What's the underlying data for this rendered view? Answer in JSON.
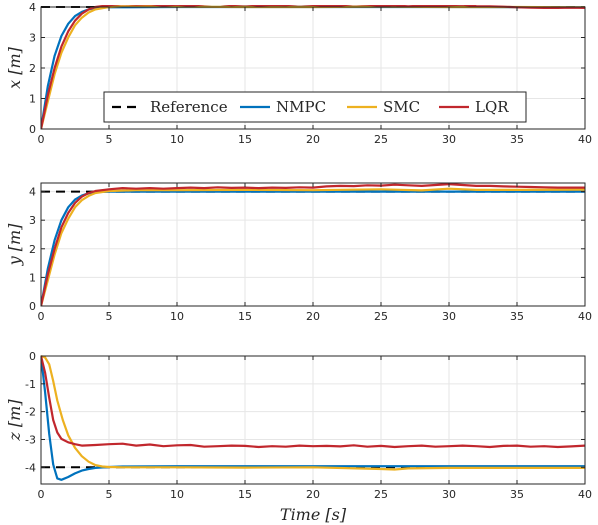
{
  "chart_data": [
    {
      "type": "line",
      "ylabel": "x [m]",
      "xlim": [
        0,
        40
      ],
      "ylim": [
        0,
        4
      ],
      "xticks": [
        "0",
        "5",
        "10",
        "15",
        "20",
        "25",
        "30",
        "35",
        "40"
      ],
      "yticks": [
        "0",
        "1",
        "2",
        "3",
        "4"
      ],
      "grid": true,
      "legend": "center-left",
      "series": [
        {
          "name": "Reference",
          "color": "#000000",
          "dash": true,
          "points": [
            [
              0,
              4
            ],
            [
              40,
              4
            ]
          ]
        },
        {
          "name": "NMPC",
          "color": "#0072BD",
          "points": [
            [
              0,
              0
            ],
            [
              0.5,
              1.4
            ],
            [
              1,
              2.4
            ],
            [
              1.5,
              3.05
            ],
            [
              2,
              3.45
            ],
            [
              2.5,
              3.7
            ],
            [
              3,
              3.84
            ],
            [
              3.5,
              3.92
            ],
            [
              4,
              3.97
            ],
            [
              5,
              3.99
            ],
            [
              10,
              4.0
            ],
            [
              20,
              4.0
            ],
            [
              30,
              4.0
            ],
            [
              40,
              3.99
            ]
          ]
        },
        {
          "name": "SMC",
          "color": "#EDB120",
          "points": [
            [
              0,
              0
            ],
            [
              0.5,
              0.9
            ],
            [
              1,
              1.8
            ],
            [
              1.5,
              2.5
            ],
            [
              2,
              3.0
            ],
            [
              2.5,
              3.4
            ],
            [
              3,
              3.65
            ],
            [
              3.5,
              3.82
            ],
            [
              4,
              3.92
            ],
            [
              5,
              4.0
            ],
            [
              6,
              4.02
            ],
            [
              10,
              4.01
            ],
            [
              15,
              4.0
            ],
            [
              20,
              4.0
            ],
            [
              25,
              4.01
            ],
            [
              30,
              4.0
            ],
            [
              35,
              4.0
            ],
            [
              40,
              3.99
            ]
          ]
        },
        {
          "name": "LQR",
          "color": "#C1272D",
          "points": [
            [
              0,
              0
            ],
            [
              0.5,
              1.1
            ],
            [
              1,
              2.0
            ],
            [
              1.5,
              2.7
            ],
            [
              2,
              3.2
            ],
            [
              2.5,
              3.55
            ],
            [
              3,
              3.78
            ],
            [
              3.5,
              3.92
            ],
            [
              4,
              4.0
            ],
            [
              5,
              4.06
            ],
            [
              6,
              4.1
            ],
            [
              7,
              4.08
            ],
            [
              8,
              4.09
            ],
            [
              9,
              4.05
            ],
            [
              10,
              4.08
            ],
            [
              11,
              4.04
            ],
            [
              12,
              4.09
            ],
            [
              13,
              4.11
            ],
            [
              14,
              4.06
            ],
            [
              15,
              4.09
            ],
            [
              16,
              4.05
            ],
            [
              17,
              4.07
            ],
            [
              18,
              4.06
            ],
            [
              19,
              4.1
            ],
            [
              20,
              4.07
            ],
            [
              21,
              4.04
            ],
            [
              22,
              4.05
            ],
            [
              23,
              4.1
            ],
            [
              24,
              4.08
            ],
            [
              25,
              4.04
            ],
            [
              26,
              4.06
            ],
            [
              27,
              4.02
            ],
            [
              28,
              4.05
            ],
            [
              29,
              4.03
            ],
            [
              30,
              4.06
            ],
            [
              31,
              4.08
            ],
            [
              32,
              4.03
            ],
            [
              33,
              4.02
            ],
            [
              34,
              4.01
            ],
            [
              35,
              3.99
            ],
            [
              36,
              3.98
            ],
            [
              37,
              3.97
            ],
            [
              38,
              3.97
            ],
            [
              39,
              3.98
            ],
            [
              40,
              3.97
            ]
          ]
        }
      ]
    },
    {
      "type": "line",
      "ylabel": "y [m]",
      "xlim": [
        0,
        40
      ],
      "ylim": [
        0,
        4.3
      ],
      "xticks": [
        "0",
        "5",
        "10",
        "15",
        "20",
        "25",
        "30",
        "35",
        "40"
      ],
      "yticks": [
        "0",
        "1",
        "2",
        "3",
        "4"
      ],
      "grid": true,
      "series": [
        {
          "name": "Reference",
          "color": "#000000",
          "dash": true,
          "points": [
            [
              0,
              4
            ],
            [
              40,
              4
            ]
          ]
        },
        {
          "name": "NMPC",
          "color": "#0072BD",
          "points": [
            [
              0,
              0
            ],
            [
              0.5,
              1.3
            ],
            [
              1,
              2.3
            ],
            [
              1.5,
              3.0
            ],
            [
              2,
              3.45
            ],
            [
              2.5,
              3.72
            ],
            [
              3,
              3.86
            ],
            [
              3.5,
              3.94
            ],
            [
              4,
              3.98
            ],
            [
              5,
              4.0
            ],
            [
              10,
              4.0
            ],
            [
              20,
              4.0
            ],
            [
              30,
              4.0
            ],
            [
              40,
              4.0
            ]
          ]
        },
        {
          "name": "SMC",
          "color": "#EDB120",
          "points": [
            [
              0,
              0
            ],
            [
              0.5,
              0.9
            ],
            [
              1,
              1.8
            ],
            [
              1.5,
              2.55
            ],
            [
              2,
              3.05
            ],
            [
              2.5,
              3.45
            ],
            [
              3,
              3.7
            ],
            [
              3.5,
              3.85
            ],
            [
              4,
              3.95
            ],
            [
              5,
              4.02
            ],
            [
              7,
              4.05
            ],
            [
              10,
              4.05
            ],
            [
              15,
              4.06
            ],
            [
              20,
              4.05
            ],
            [
              25,
              4.08
            ],
            [
              28,
              4.04
            ],
            [
              30,
              4.1
            ],
            [
              32,
              4.06
            ],
            [
              35,
              4.06
            ],
            [
              40,
              4.07
            ]
          ]
        },
        {
          "name": "LQR",
          "color": "#C1272D",
          "points": [
            [
              0,
              0
            ],
            [
              0.5,
              1.1
            ],
            [
              1,
              2.0
            ],
            [
              1.5,
              2.75
            ],
            [
              2,
              3.25
            ],
            [
              2.5,
              3.6
            ],
            [
              3,
              3.82
            ],
            [
              3.5,
              3.95
            ],
            [
              4,
              4.02
            ],
            [
              5,
              4.08
            ],
            [
              6,
              4.12
            ],
            [
              7,
              4.1
            ],
            [
              8,
              4.12
            ],
            [
              9,
              4.1
            ],
            [
              10,
              4.12
            ],
            [
              11,
              4.14
            ],
            [
              12,
              4.12
            ],
            [
              13,
              4.15
            ],
            [
              14,
              4.13
            ],
            [
              15,
              4.14
            ],
            [
              16,
              4.12
            ],
            [
              17,
              4.14
            ],
            [
              18,
              4.13
            ],
            [
              19,
              4.15
            ],
            [
              20,
              4.14
            ],
            [
              21,
              4.18
            ],
            [
              22,
              4.2
            ],
            [
              23,
              4.19
            ],
            [
              24,
              4.22
            ],
            [
              25,
              4.21
            ],
            [
              26,
              4.24
            ],
            [
              27,
              4.22
            ],
            [
              28,
              4.2
            ],
            [
              29,
              4.23
            ],
            [
              30,
              4.26
            ],
            [
              31,
              4.23
            ],
            [
              32,
              4.2
            ],
            [
              33,
              4.2
            ],
            [
              34,
              4.18
            ],
            [
              35,
              4.17
            ],
            [
              36,
              4.16
            ],
            [
              37,
              4.15
            ],
            [
              38,
              4.14
            ],
            [
              39,
              4.14
            ],
            [
              40,
              4.14
            ]
          ]
        }
      ]
    },
    {
      "type": "line",
      "ylabel": "z [m]",
      "xlabel": "Time [s]",
      "xlim": [
        0,
        40
      ],
      "ylim": [
        -4.6,
        0
      ],
      "xticks": [
        "0",
        "5",
        "10",
        "15",
        "20",
        "25",
        "30",
        "35",
        "40"
      ],
      "yticks": [
        "0",
        "-1",
        "-2",
        "-3",
        "-4"
      ],
      "grid": true,
      "series": [
        {
          "name": "Reference",
          "color": "#000000",
          "dash": true,
          "points": [
            [
              0,
              -4
            ],
            [
              40,
              -4
            ]
          ]
        },
        {
          "name": "NMPC",
          "color": "#0072BD",
          "points": [
            [
              0,
              0
            ],
            [
              0.3,
              -1.3
            ],
            [
              0.6,
              -2.8
            ],
            [
              0.9,
              -3.9
            ],
            [
              1.2,
              -4.4
            ],
            [
              1.5,
              -4.45
            ],
            [
              2,
              -4.35
            ],
            [
              2.5,
              -4.22
            ],
            [
              3,
              -4.12
            ],
            [
              3.5,
              -4.06
            ],
            [
              4,
              -4.02
            ],
            [
              5,
              -3.99
            ],
            [
              6,
              -3.97
            ],
            [
              10,
              -3.96
            ],
            [
              20,
              -3.96
            ],
            [
              30,
              -3.96
            ],
            [
              40,
              -3.96
            ]
          ]
        },
        {
          "name": "SMC",
          "color": "#EDB120",
          "points": [
            [
              0,
              0
            ],
            [
              0.3,
              -0.05
            ],
            [
              0.6,
              -0.3
            ],
            [
              0.9,
              -0.9
            ],
            [
              1.2,
              -1.6
            ],
            [
              1.6,
              -2.3
            ],
            [
              2,
              -2.85
            ],
            [
              2.5,
              -3.3
            ],
            [
              3,
              -3.6
            ],
            [
              3.5,
              -3.8
            ],
            [
              4,
              -3.92
            ],
            [
              4.5,
              -3.97
            ],
            [
              5,
              -3.99
            ],
            [
              6,
              -4.0
            ],
            [
              10,
              -4.0
            ],
            [
              15,
              -4.01
            ],
            [
              20,
              -4.0
            ],
            [
              25,
              -4.06
            ],
            [
              26,
              -4.08
            ],
            [
              27,
              -4.04
            ],
            [
              30,
              -4.02
            ],
            [
              35,
              -4.02
            ],
            [
              40,
              -4.02
            ]
          ]
        },
        {
          "name": "LQR",
          "color": "#C1272D",
          "points": [
            [
              0,
              0
            ],
            [
              0.3,
              -0.6
            ],
            [
              0.6,
              -1.5
            ],
            [
              0.9,
              -2.3
            ],
            [
              1.2,
              -2.75
            ],
            [
              1.5,
              -2.98
            ],
            [
              2,
              -3.1
            ],
            [
              2.5,
              -3.17
            ],
            [
              3,
              -3.22
            ],
            [
              4,
              -3.2
            ],
            [
              5,
              -3.17
            ],
            [
              6,
              -3.15
            ],
            [
              7,
              -3.22
            ],
            [
              8,
              -3.18
            ],
            [
              9,
              -3.24
            ],
            [
              10,
              -3.21
            ],
            [
              11,
              -3.2
            ],
            [
              12,
              -3.26
            ],
            [
              13,
              -3.24
            ],
            [
              14,
              -3.22
            ],
            [
              15,
              -3.23
            ],
            [
              16,
              -3.27
            ],
            [
              17,
              -3.24
            ],
            [
              18,
              -3.26
            ],
            [
              19,
              -3.22
            ],
            [
              20,
              -3.24
            ],
            [
              21,
              -3.23
            ],
            [
              22,
              -3.25
            ],
            [
              23,
              -3.21
            ],
            [
              24,
              -3.26
            ],
            [
              25,
              -3.23
            ],
            [
              26,
              -3.27
            ],
            [
              27,
              -3.24
            ],
            [
              28,
              -3.22
            ],
            [
              29,
              -3.26
            ],
            [
              30,
              -3.24
            ],
            [
              31,
              -3.22
            ],
            [
              32,
              -3.24
            ],
            [
              33,
              -3.27
            ],
            [
              34,
              -3.23
            ],
            [
              35,
              -3.22
            ],
            [
              36,
              -3.26
            ],
            [
              37,
              -3.24
            ],
            [
              38,
              -3.27
            ],
            [
              39,
              -3.25
            ],
            [
              40,
              -3.22
            ]
          ]
        }
      ]
    }
  ]
}
